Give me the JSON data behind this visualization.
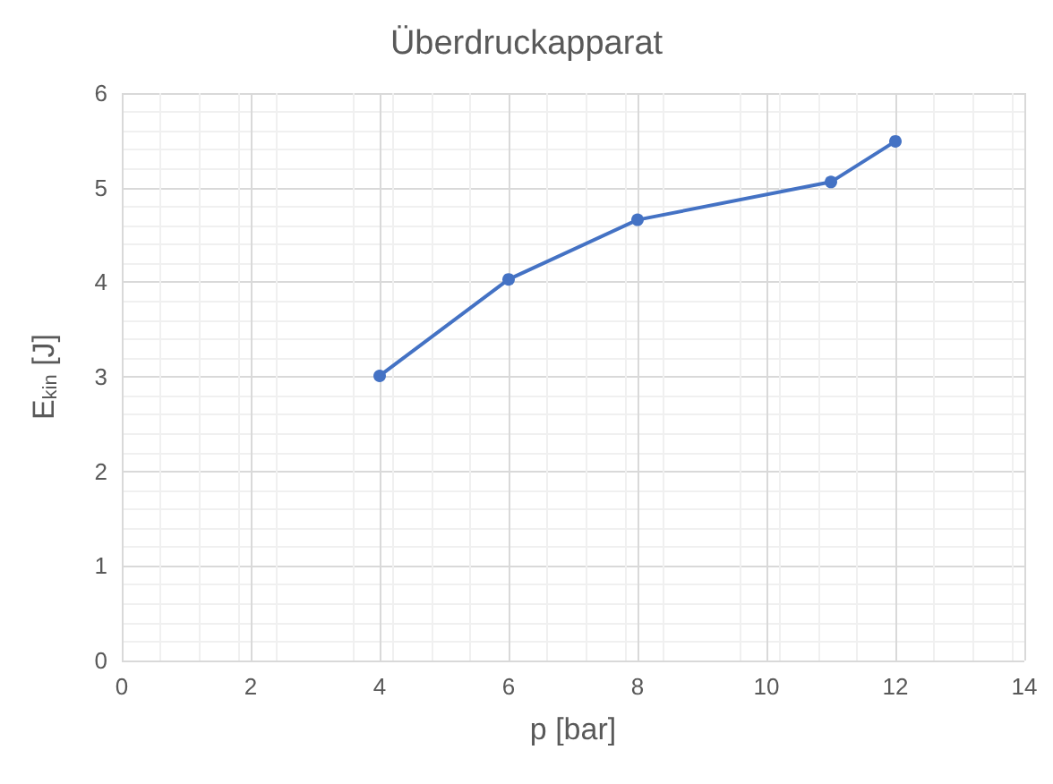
{
  "chart_data": {
    "type": "line",
    "title": "Überdruckapparat",
    "xlabel": "p [bar]",
    "ylabel": "E$_{kin}$ [J]",
    "x": [
      4,
      6,
      8,
      11,
      12
    ],
    "series": [
      {
        "color": "#4472c4",
        "values": [
          3.01,
          4.03,
          4.66,
          5.06,
          5.49
        ]
      }
    ],
    "xlim": [
      0,
      14
    ],
    "xticks": [
      0,
      2,
      4,
      6,
      8,
      10,
      12,
      14
    ],
    "ylim": [
      0,
      6
    ],
    "yticks": [
      0,
      1,
      2,
      3,
      4,
      5,
      6
    ],
    "grid": true,
    "marker": "circle",
    "line_style": "solid"
  }
}
